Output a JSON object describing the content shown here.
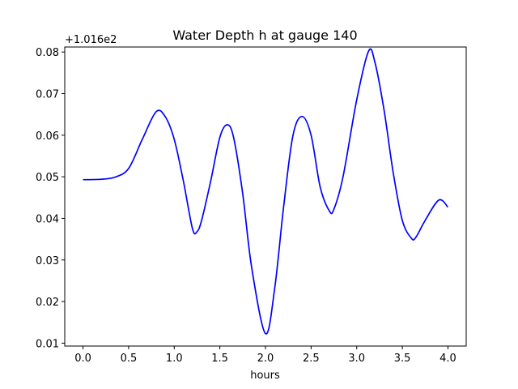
{
  "chart_data": {
    "type": "line",
    "title": "Water Depth h at gauge 140",
    "xlabel": "hours",
    "ylabel": "",
    "y_offset_label": "+1.016e2",
    "xlim": [
      -0.2,
      4.2
    ],
    "ylim": [
      0.0093,
      0.0812
    ],
    "x_ticks": [
      0.0,
      0.5,
      1.0,
      1.5,
      2.0,
      2.5,
      3.0,
      3.5,
      4.0
    ],
    "x_tick_labels": [
      "0.0",
      "0.5",
      "1.0",
      "1.5",
      "2.0",
      "2.5",
      "3.0",
      "3.5",
      "4.0"
    ],
    "y_ticks": [
      0.01,
      0.02,
      0.03,
      0.04,
      0.05,
      0.06,
      0.07,
      0.08
    ],
    "y_tick_labels": [
      "0.01",
      "0.02",
      "0.03",
      "0.04",
      "0.05",
      "0.06",
      "0.07",
      "0.08"
    ],
    "grid": false,
    "series": [
      {
        "color": "#0000ff",
        "x": [
          0.0,
          0.2,
          0.35,
          0.5,
          0.65,
          0.8,
          0.9,
          1.0,
          1.1,
          1.2,
          1.25,
          1.3,
          1.4,
          1.5,
          1.58,
          1.65,
          1.75,
          1.85,
          2.0,
          2.1,
          2.2,
          2.3,
          2.4,
          2.5,
          2.6,
          2.7,
          2.75,
          2.85,
          3.0,
          3.13,
          3.2,
          3.3,
          3.4,
          3.5,
          3.6,
          3.65,
          3.75,
          3.9,
          4.0
        ],
        "y": [
          0.0493,
          0.0494,
          0.0499,
          0.052,
          0.059,
          0.0656,
          0.0645,
          0.059,
          0.049,
          0.0375,
          0.0368,
          0.0395,
          0.049,
          0.0595,
          0.0625,
          0.0595,
          0.046,
          0.028,
          0.0123,
          0.023,
          0.043,
          0.0598,
          0.0645,
          0.06,
          0.0475,
          0.0418,
          0.0422,
          0.05,
          0.0685,
          0.0802,
          0.0775,
          0.066,
          0.051,
          0.0395,
          0.0352,
          0.0355,
          0.0395,
          0.0444,
          0.0427
        ]
      }
    ]
  }
}
